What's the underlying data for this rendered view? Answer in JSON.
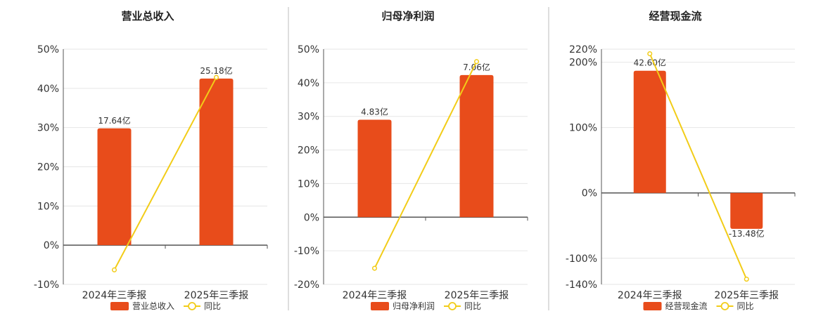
{
  "colors": {
    "bar": "#e84c1b",
    "line": "#f2cc18",
    "grid": "#e6e6e6",
    "axis": "#555555",
    "divider": "#bdbdbd"
  },
  "chart_data": [
    {
      "type": "bar",
      "title": "营业总收入",
      "categories": [
        "2024年三季报",
        "2025年三季报"
      ],
      "series": [
        {
          "name": "营业总收入",
          "type": "bar",
          "values": [
            29.8,
            42.5
          ],
          "labels": [
            "17.64亿",
            "25.18亿"
          ]
        },
        {
          "name": "同比",
          "type": "line",
          "values": [
            -6.3,
            42.8
          ]
        }
      ],
      "yticks": [
        -10,
        0,
        10,
        20,
        30,
        40,
        50
      ],
      "ytick_labels": [
        "-10%",
        "0%",
        "10%",
        "20%",
        "30%",
        "40%",
        "50%"
      ],
      "ylim": [
        -10,
        50
      ],
      "grid": true,
      "legend": "bottom"
    },
    {
      "type": "bar",
      "title": "归母净利润",
      "categories": [
        "2024年三季报",
        "2025年三季报"
      ],
      "series": [
        {
          "name": "归母净利润",
          "type": "bar",
          "values": [
            29.0,
            42.3
          ],
          "labels": [
            "4.83亿",
            "7.06亿"
          ]
        },
        {
          "name": "同比",
          "type": "line",
          "values": [
            -15.2,
            46.3
          ]
        }
      ],
      "yticks": [
        -20,
        -10,
        0,
        10,
        20,
        30,
        40,
        50
      ],
      "ytick_labels": [
        "-20%",
        "-10%",
        "0%",
        "10%",
        "20%",
        "30%",
        "40%",
        "50%"
      ],
      "ylim": [
        -20,
        50
      ],
      "grid": true,
      "legend": "bottom"
    },
    {
      "type": "bar",
      "title": "经营现金流",
      "categories": [
        "2024年三季报",
        "2025年三季报"
      ],
      "series": [
        {
          "name": "经营现金流",
          "type": "bar",
          "values": [
            187,
            -55
          ],
          "labels": [
            "42.60亿",
            "-13.48亿"
          ]
        },
        {
          "name": "同比",
          "type": "line",
          "values": [
            213,
            -132
          ]
        }
      ],
      "yticks": [
        -140,
        -100,
        0,
        100,
        200,
        220
      ],
      "ytick_labels": [
        "-140%",
        "-100%",
        "0%",
        "100%",
        "200%",
        "220%"
      ],
      "ylim": [
        -140,
        220
      ],
      "grid": true,
      "legend": "bottom"
    }
  ]
}
